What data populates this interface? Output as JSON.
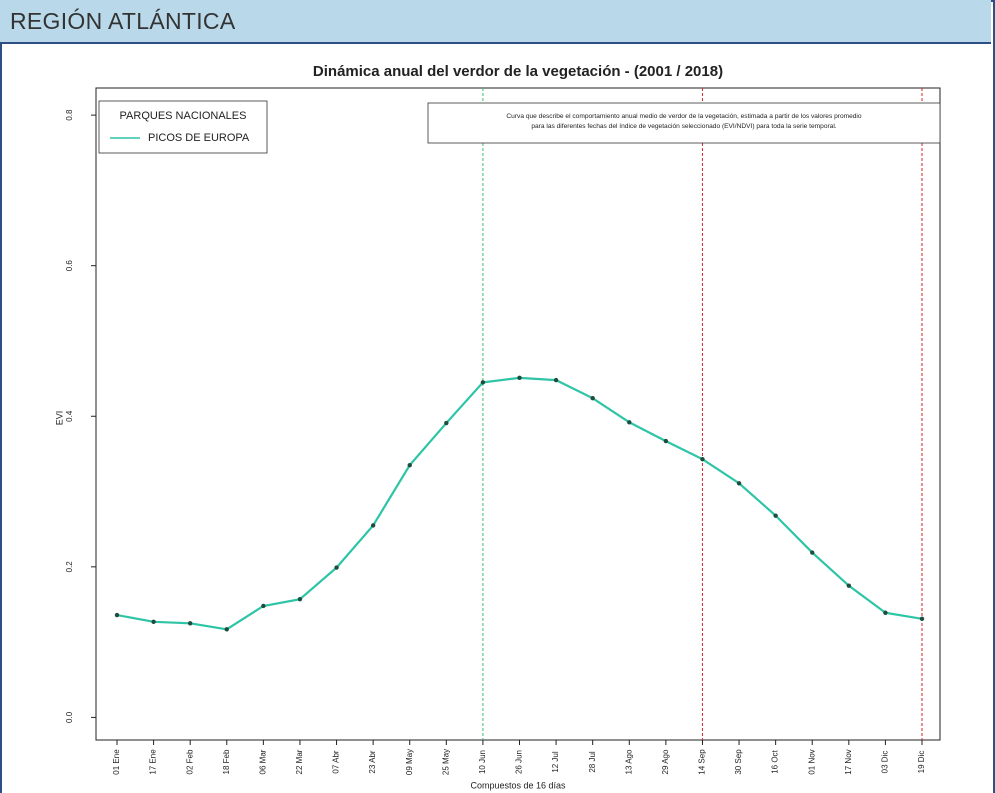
{
  "header": {
    "title": "REGIÓN ATLÁNTICA"
  },
  "chart_data": {
    "type": "line",
    "title": "Dinámica anual del verdor de la vegetación - (2001 / 2018)",
    "x_label": "Compuestos de 16 días",
    "y_label": "EVI",
    "categories": [
      "01 Ene",
      "17 Ene",
      "02 Feb",
      "18 Feb",
      "06 Mar",
      "22 Mar",
      "07 Abr",
      "23 Abr",
      "09 May",
      "25 May",
      "10 Jun",
      "26 Jun",
      "12 Jul",
      "28 Jul",
      "13 Ago",
      "29 Ago",
      "14 Sep",
      "30 Sep",
      "16 Oct",
      "01 Nov",
      "17 Nov",
      "03 Dic",
      "19 Dic"
    ],
    "series": [
      {
        "name": "PICOS DE EUROPA",
        "color": "#2ec4a6",
        "values": [
          0.136,
          0.127,
          0.125,
          0.117,
          0.148,
          0.157,
          0.199,
          0.255,
          0.335,
          0.391,
          0.445,
          0.451,
          0.448,
          0.424,
          0.392,
          0.367,
          0.343,
          0.311,
          0.268,
          0.219,
          0.175,
          0.139,
          0.131
        ]
      }
    ],
    "legend_title": "PARQUES NACIONALES",
    "legend": "top-left",
    "ylim": [
      -0.03,
      0.836
    ],
    "yticks": [
      {
        "value": 0,
        "label": "0.0"
      },
      {
        "value": 0.2,
        "label": "0.2"
      },
      {
        "value": 0.4,
        "label": "0.4"
      },
      {
        "value": 0.6,
        "label": "0.6"
      },
      {
        "value": 0.8,
        "label": "0.8"
      }
    ],
    "annotation": [
      "Curva que describe el comportamiento anual medio de verdor de la vegetación, estimada a partir de los valores promedio",
      "para las diferentes fechas del índice de vegetación seleccionado (EVI/NDVI) para toda la serie temporal.",
      ""
    ],
    "vlines": [
      {
        "at": "10 Jun",
        "color": "#3fbf6a"
      },
      {
        "at": "14 Sep",
        "color": "#d8262e"
      },
      {
        "at": "19 Dic",
        "color": "#d8262e"
      }
    ]
  }
}
